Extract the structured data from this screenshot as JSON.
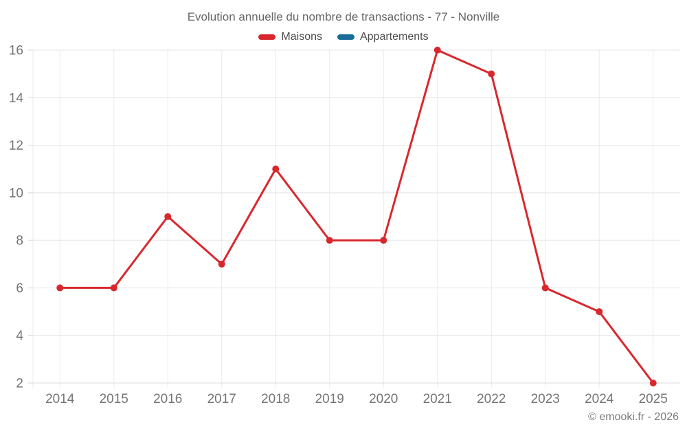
{
  "title": "Evolution annuelle du nombre de transactions - 77 - Nonville",
  "legend": {
    "items": [
      {
        "label": "Maisons",
        "color": "#d8282e"
      },
      {
        "label": "Appartements",
        "color": "#1a6d9b"
      }
    ]
  },
  "footer": {
    "attribution": "© emooki.fr - 2026"
  },
  "chart_data": {
    "type": "line",
    "title": "Evolution annuelle du nombre de transactions - 77 - Nonville",
    "categories": [
      "2014",
      "2015",
      "2016",
      "2017",
      "2018",
      "2019",
      "2020",
      "2021",
      "2022",
      "2023",
      "2024",
      "2025"
    ],
    "series": [
      {
        "name": "Maisons",
        "color": "#d8282e",
        "values": [
          6,
          6,
          9,
          7,
          11,
          8,
          8,
          16,
          15,
          6,
          5,
          2
        ]
      },
      {
        "name": "Appartements",
        "color": "#1a6d9b",
        "values": []
      }
    ],
    "xlabel": "",
    "ylabel": "",
    "ylim": [
      2,
      16
    ],
    "yticks": [
      2,
      4,
      6,
      8,
      10,
      12,
      14,
      16
    ],
    "grid": true,
    "legend_position": "top",
    "marker": "circle",
    "marker_radius": 5,
    "line_width": 3
  },
  "colors": {
    "background": "#ffffff",
    "horizontal_grid": "#e4e4e4",
    "vertical_grid": "#ebebeb",
    "axis_line": "#dcdcdc",
    "tick": "#d6d6d6",
    "axis_label": "#757575",
    "title_text": "#666666",
    "legend_text": "#4c4c4c",
    "footer_text": "#7a7a7a"
  }
}
